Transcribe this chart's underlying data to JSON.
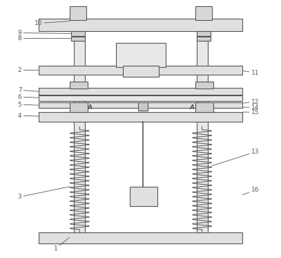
{
  "bg_color": "#ffffff",
  "line_color": "#555555",
  "lw": 0.8,
  "fig_width": 4.07,
  "fig_height": 3.73
}
